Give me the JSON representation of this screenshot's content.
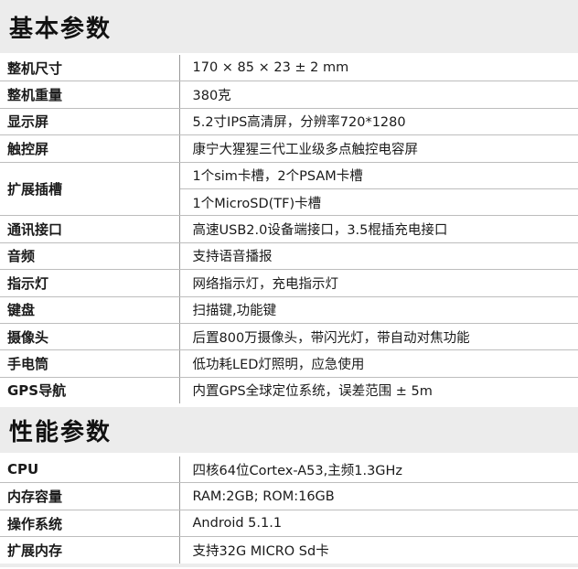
{
  "sections": [
    {
      "title": "基本参数",
      "rows": [
        {
          "label": "整机尺寸",
          "values": [
            "170 × 85 × 23 ± 2 mm"
          ]
        },
        {
          "label": "整机重量",
          "values": [
            "380克"
          ]
        },
        {
          "label": "显示屏",
          "values": [
            "5.2寸IPS高清屏，分辨率720*1280"
          ]
        },
        {
          "label": "触控屏",
          "values": [
            "康宁大猩猩三代工业级多点触控电容屏"
          ]
        },
        {
          "label": "扩展插槽",
          "values": [
            "1个sim卡槽，2个PSAM卡槽",
            "1个MicroSD(TF)卡槽"
          ]
        },
        {
          "label": "通讯接口",
          "values": [
            "高速USB2.0设备端接口，3.5棍插充电接口"
          ]
        },
        {
          "label": "音频",
          "values": [
            "支持语音播报"
          ]
        },
        {
          "label": "指示灯",
          "values": [
            "网络指示灯，充电指示灯"
          ]
        },
        {
          "label": "键盘",
          "values": [
            "扫描键,功能键"
          ]
        },
        {
          "label": "摄像头",
          "values": [
            "后置800万摄像头，带闪光灯，带自动对焦功能"
          ]
        },
        {
          "label": "手电筒",
          "values": [
            "低功耗LED灯照明，应急使用"
          ]
        },
        {
          "label": "GPS导航",
          "values": [
            "内置GPS全球定位系统，误差范围 ± 5m"
          ]
        }
      ]
    },
    {
      "title": "性能参数",
      "rows": [
        {
          "label": "CPU",
          "values": [
            "四核64位Cortex-A53,主频1.3GHz"
          ]
        },
        {
          "label": "内存容量",
          "values": [
            "RAM:2GB; ROM:16GB"
          ]
        },
        {
          "label": "操作系统",
          "values": [
            "Android 5.1.1"
          ]
        },
        {
          "label": "扩展内存",
          "values": [
            "支持32G MICRO Sd卡"
          ]
        }
      ]
    }
  ]
}
